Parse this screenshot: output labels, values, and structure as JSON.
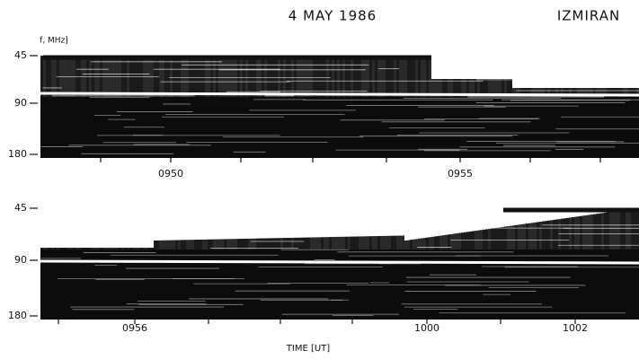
{
  "header": {
    "title": "4 MAY 1986",
    "station": "IZMIRAN"
  },
  "y_axis_label": "f, MHz]",
  "panels": [
    {
      "y_labels": [
        "45",
        "90",
        "180"
      ],
      "x_labels": [
        "0950",
        "0955"
      ]
    },
    {
      "y_labels": [
        "45",
        "90",
        "180"
      ],
      "x_labels": [
        "0956",
        "1000",
        "1002"
      ]
    }
  ],
  "x_axis_label": "TIME [UT]"
}
